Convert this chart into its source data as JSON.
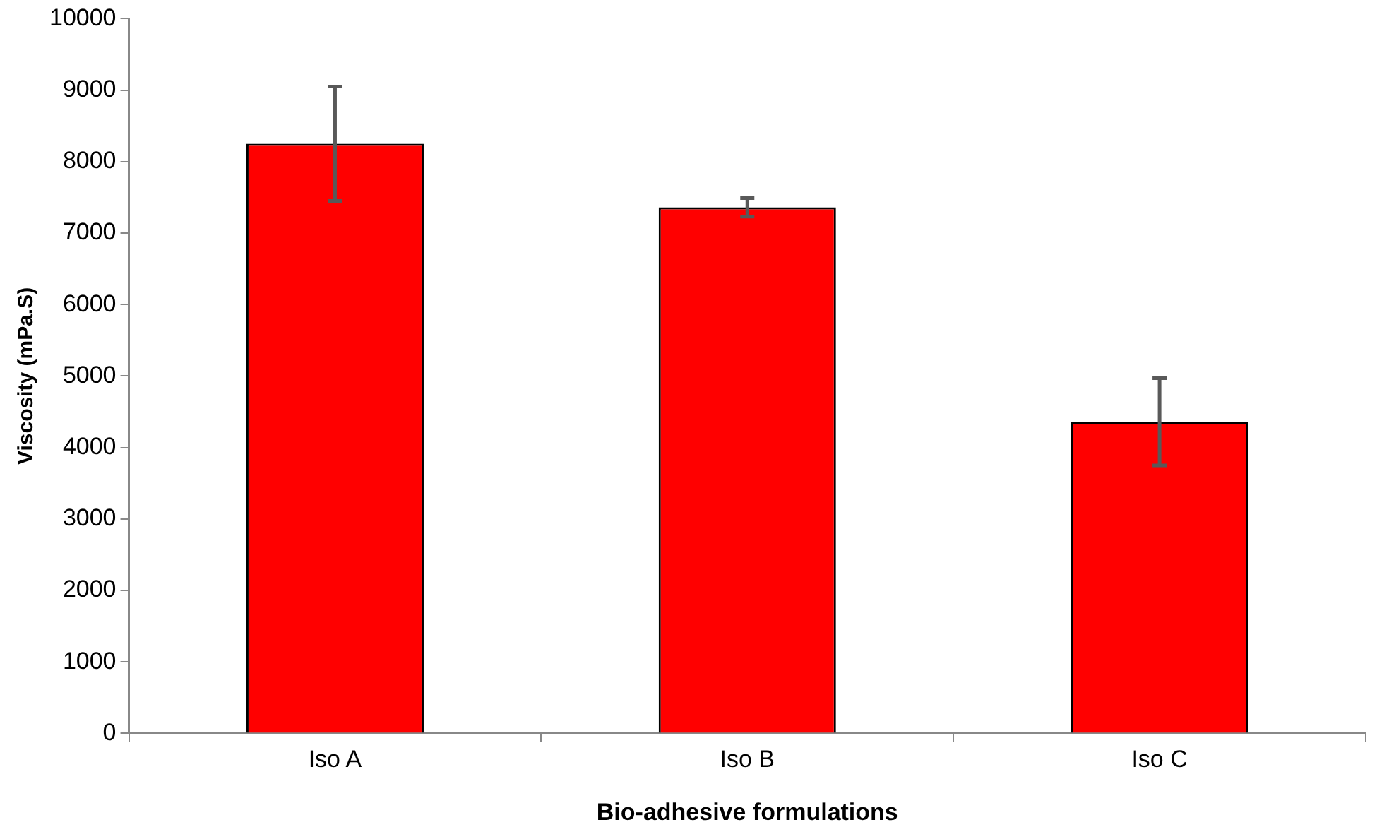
{
  "chart_data": {
    "type": "bar",
    "xlabel": "Bio-adhesive formulations",
    "ylabel": "Viscosity (mPa.S)",
    "categories": [
      "Iso A",
      "Iso B",
      "Iso C"
    ],
    "values": [
      8250,
      7360,
      4360
    ],
    "color": "#ff0000",
    "errors": [
      800,
      130,
      610
    ],
    "ylim": [
      0,
      10000
    ],
    "yticks": [
      0,
      1000,
      2000,
      3000,
      4000,
      5000,
      6000,
      7000,
      8000,
      9000,
      10000
    ],
    "grid": false,
    "legend": false
  }
}
